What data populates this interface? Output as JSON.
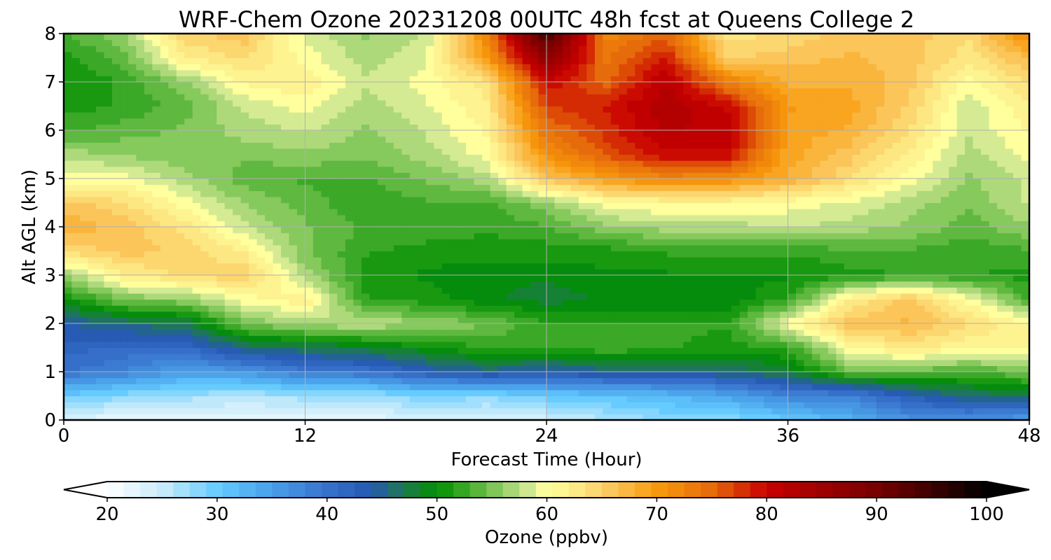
{
  "chart_data": {
    "type": "heatmap",
    "title": "WRF-Chem Ozone  20231208 00UTC 48h fcst at Queens College 2",
    "xlabel": "Forecast Time (Hour)",
    "ylabel": "Alt AGL (km)",
    "xlim": [
      0,
      48
    ],
    "ylim": [
      0,
      8
    ],
    "x_ticks": [
      0,
      12,
      24,
      36,
      48
    ],
    "y_ticks": [
      0,
      1,
      2,
      3,
      4,
      5,
      6,
      7,
      8
    ],
    "grid": true,
    "x_hours": [
      0,
      3,
      6,
      9,
      12,
      15,
      18,
      21,
      24,
      27,
      30,
      33,
      36,
      39,
      42,
      45,
      48
    ],
    "y_km": [
      0,
      0.5,
      1,
      1.5,
      2,
      2.5,
      3,
      3.5,
      4,
      4.5,
      5,
      5.5,
      6,
      6.5,
      7,
      7.5,
      8
    ],
    "ozone_ppbv": [
      [
        23,
        22,
        22,
        22,
        22,
        22,
        24,
        23,
        24,
        26,
        28,
        28,
        30,
        33,
        36,
        36,
        35
      ],
      [
        30,
        28,
        27,
        26,
        27,
        27,
        29,
        28,
        30,
        31,
        32,
        34,
        38,
        38,
        43,
        46,
        47
      ],
      [
        40,
        38,
        35,
        36,
        39,
        40,
        43,
        45,
        44,
        45,
        45,
        46,
        48,
        54,
        54,
        53,
        55
      ],
      [
        42,
        41,
        41,
        46,
        47,
        48,
        50,
        52,
        52,
        53,
        52,
        51,
        52,
        60,
        63,
        61,
        61
      ],
      [
        44,
        46,
        47,
        55,
        57,
        58,
        56,
        55,
        52,
        52,
        52,
        52,
        60,
        66,
        67,
        64,
        61
      ],
      [
        50,
        55,
        56,
        60,
        62,
        52,
        51,
        49,
        48,
        49,
        49,
        49,
        52,
        62,
        66,
        60,
        53
      ],
      [
        56,
        62,
        64,
        65,
        57,
        51,
        50,
        49,
        49,
        50,
        50,
        50,
        50,
        51,
        52,
        52,
        51
      ],
      [
        64,
        66,
        65,
        62,
        55,
        52,
        51,
        51,
        51,
        51,
        52,
        52,
        52,
        53,
        53,
        52,
        53
      ],
      [
        68,
        66,
        63,
        58,
        55,
        53,
        53,
        52,
        53,
        56,
        57,
        57,
        58,
        57,
        56,
        54,
        56
      ],
      [
        66,
        64,
        60,
        56,
        54,
        52,
        53,
        53,
        56,
        60,
        61,
        61,
        60,
        59,
        57,
        55,
        58
      ],
      [
        60,
        60,
        57,
        54,
        53,
        53,
        55,
        57,
        66,
        70,
        72,
        71,
        68,
        64,
        60,
        56,
        58
      ],
      [
        57,
        56,
        55,
        55,
        56,
        55,
        57,
        60,
        71,
        76,
        80,
        80,
        69,
        66,
        62,
        57,
        60
      ],
      [
        53,
        54,
        55,
        57,
        58,
        56,
        58,
        61,
        74,
        78,
        82,
        81,
        69,
        68,
        64,
        58,
        61
      ],
      [
        51,
        52,
        54,
        58,
        60,
        57,
        59,
        62,
        77,
        79,
        83,
        80,
        70,
        69,
        65,
        58,
        62
      ],
      [
        50,
        52,
        56,
        61,
        62,
        58,
        60,
        63,
        80,
        75,
        82,
        73,
        68,
        68,
        66,
        60,
        64
      ],
      [
        51,
        54,
        62,
        64,
        60,
        57,
        59,
        70,
        87,
        74,
        79,
        65,
        66,
        67,
        66,
        63,
        67
      ],
      [
        53,
        56,
        65,
        66,
        59,
        56,
        58,
        72,
        95,
        72,
        75,
        63,
        64,
        66,
        66,
        64,
        72
      ]
    ]
  },
  "colorbar": {
    "label": "Ozone  (ppbv)",
    "tick_labels": [
      "20",
      "30",
      "40",
      "50",
      "60",
      "70",
      "80",
      "90",
      "100"
    ],
    "tick_values": [
      20,
      30,
      40,
      50,
      60,
      70,
      80,
      90,
      100
    ],
    "min": 20,
    "max": 100,
    "extend": "both"
  },
  "colormap": {
    "stops": [
      [
        20,
        "#ffffff"
      ],
      [
        25,
        "#c9ecfb"
      ],
      [
        30,
        "#66ccff"
      ],
      [
        34,
        "#4da8ee"
      ],
      [
        40,
        "#3872cc"
      ],
      [
        44,
        "#2458b0"
      ],
      [
        47,
        "#1e7a50"
      ],
      [
        50,
        "#008f00"
      ],
      [
        54,
        "#5fb83f"
      ],
      [
        58,
        "#c7e48f"
      ],
      [
        60,
        "#ffff9e"
      ],
      [
        63,
        "#fde783"
      ],
      [
        66,
        "#fbc55a"
      ],
      [
        70,
        "#f89a0c"
      ],
      [
        75,
        "#e66b0a"
      ],
      [
        80,
        "#c80000"
      ],
      [
        85,
        "#9e0000"
      ],
      [
        90,
        "#780000"
      ],
      [
        95,
        "#3c0000"
      ],
      [
        100,
        "#000000"
      ]
    ]
  }
}
